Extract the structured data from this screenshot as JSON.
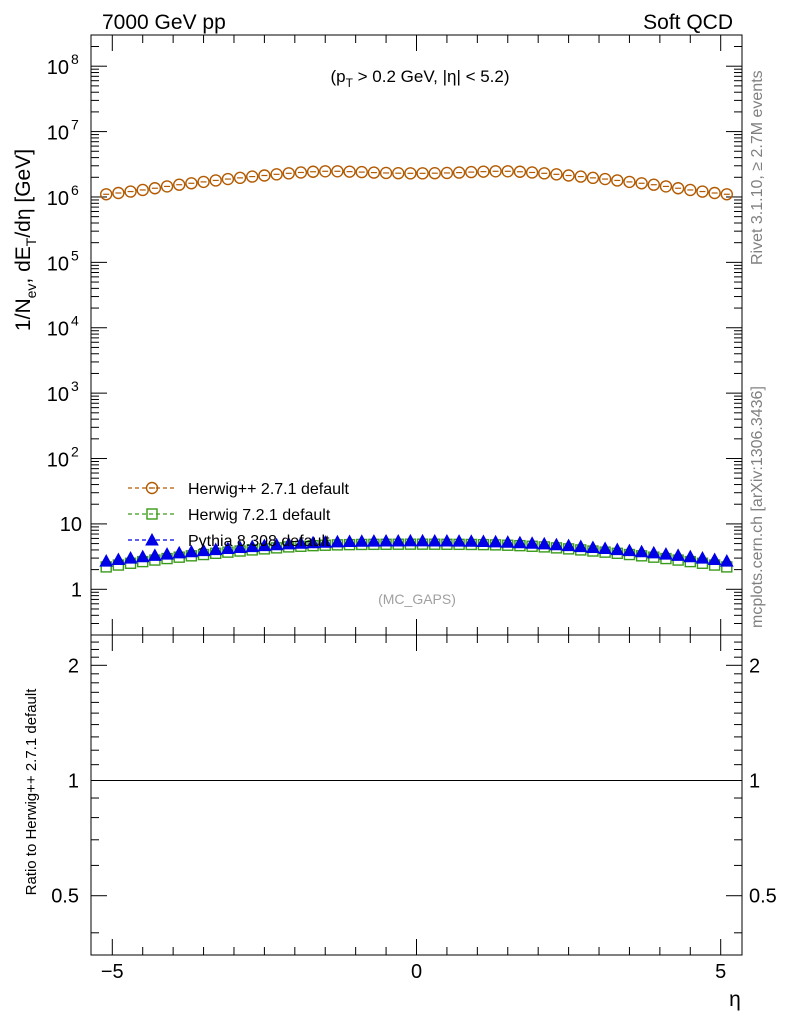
{
  "header": {
    "left": "7000 GeV pp",
    "right": "Soft QCD"
  },
  "side_labels": {
    "rivet": "Rivet 3.1.10, ≥ 2.7M events",
    "mcplots": "mcplots.cern.ch [arXiv:1306.3436]"
  },
  "watermark": "(MC_GAPS)",
  "cut_label": "(p_T > 0.2 GeV, |η| < 5.2)",
  "chart_data": [
    {
      "type": "scatter",
      "panel": "main",
      "ylabel": "1/N_ev, dE_T/dη [GeV]",
      "yscale": "log",
      "ylim": [
        0.2,
        300000000
      ],
      "xlim": [
        -5.35,
        5.35
      ],
      "y_ticks": [
        {
          "value": 1,
          "label": "1"
        },
        {
          "value": 10,
          "label": "10"
        },
        {
          "value": 100,
          "label": "10",
          "exp": "2"
        },
        {
          "value": 1000,
          "label": "10",
          "exp": "3"
        },
        {
          "value": 10000,
          "label": "10",
          "exp": "4"
        },
        {
          "value": 100000,
          "label": "10",
          "exp": "5"
        },
        {
          "value": 1000000,
          "label": "10",
          "exp": "6"
        },
        {
          "value": 10000000,
          "label": "10",
          "exp": "7"
        },
        {
          "value": 100000000,
          "label": "10",
          "exp": "8"
        }
      ],
      "x": [
        -5.1,
        -4.9,
        -4.7,
        -4.5,
        -4.3,
        -4.1,
        -3.9,
        -3.7,
        -3.5,
        -3.3,
        -3.1,
        -2.9,
        -2.7,
        -2.5,
        -2.3,
        -2.1,
        -1.9,
        -1.7,
        -1.5,
        -1.3,
        -1.1,
        -0.9,
        -0.7,
        -0.5,
        -0.3,
        -0.1,
        0.1,
        0.3,
        0.5,
        0.7,
        0.9,
        1.1,
        1.3,
        1.5,
        1.7,
        1.9,
        2.1,
        2.3,
        2.5,
        2.7,
        2.9,
        3.1,
        3.3,
        3.5,
        3.7,
        3.9,
        4.1,
        4.3,
        4.5,
        4.7,
        4.9,
        5.1
      ],
      "series": [
        {
          "name": "Herwig++ 2.7.1 default",
          "color": "#b35a00",
          "marker": "open-circle",
          "values": [
            1100000,
            1150000,
            1210000,
            1280000,
            1360000,
            1450000,
            1540000,
            1620000,
            1700000,
            1790000,
            1880000,
            1960000,
            2050000,
            2130000,
            2220000,
            2300000,
            2370000,
            2430000,
            2470000,
            2470000,
            2440000,
            2400000,
            2360000,
            2330000,
            2310000,
            2300000,
            2300000,
            2310000,
            2330000,
            2360000,
            2400000,
            2440000,
            2470000,
            2470000,
            2430000,
            2370000,
            2300000,
            2220000,
            2130000,
            2050000,
            1960000,
            1880000,
            1790000,
            1700000,
            1620000,
            1540000,
            1450000,
            1360000,
            1280000,
            1210000,
            1150000,
            1100000
          ]
        },
        {
          "name": "Herwig 7.2.1 default",
          "color": "#3a9a1a",
          "marker": "open-square",
          "values": [
            2.2,
            2.35,
            2.5,
            2.65,
            2.8,
            2.95,
            3.1,
            3.25,
            3.4,
            3.55,
            3.7,
            3.85,
            4.0,
            4.15,
            4.3,
            4.45,
            4.55,
            4.65,
            4.72,
            4.78,
            4.82,
            4.85,
            4.87,
            4.88,
            4.89,
            4.9,
            4.9,
            4.89,
            4.88,
            4.87,
            4.85,
            4.82,
            4.78,
            4.72,
            4.65,
            4.55,
            4.45,
            4.3,
            4.15,
            4.0,
            3.85,
            3.7,
            3.55,
            3.4,
            3.25,
            3.1,
            2.95,
            2.8,
            2.65,
            2.5,
            2.35,
            2.2
          ]
        },
        {
          "name": "Pythia 8.308 default",
          "color": "#0000e6",
          "marker": "filled-triangle",
          "values": [
            2.7,
            2.85,
            3.0,
            3.15,
            3.3,
            3.45,
            3.6,
            3.75,
            3.9,
            4.05,
            4.2,
            4.35,
            4.5,
            4.65,
            4.8,
            4.95,
            5.05,
            5.15,
            5.25,
            5.32,
            5.38,
            5.42,
            5.45,
            5.47,
            5.48,
            5.5,
            5.5,
            5.48,
            5.47,
            5.45,
            5.42,
            5.38,
            5.32,
            5.25,
            5.15,
            5.05,
            4.95,
            4.8,
            4.65,
            4.5,
            4.35,
            4.2,
            4.05,
            3.9,
            3.75,
            3.6,
            3.45,
            3.3,
            3.15,
            3.0,
            2.85,
            2.7
          ]
        }
      ],
      "legend": "lower-left"
    },
    {
      "type": "line",
      "panel": "ratio",
      "ylabel": "Ratio to Herwig++ 2.7.1 default",
      "xlabel": "η",
      "yscale": "log",
      "ylim": [
        0.35,
        2.4
      ],
      "xlim": [
        -5.35,
        5.35
      ],
      "y_ticks": [
        {
          "value": 0.5,
          "label": "0.5"
        },
        {
          "value": 1,
          "label": "1"
        },
        {
          "value": 2,
          "label": "2"
        }
      ],
      "x_ticks": [
        {
          "value": -5,
          "label": "−5"
        },
        {
          "value": 0,
          "label": "0"
        },
        {
          "value": 5,
          "label": "5"
        }
      ],
      "reference": 1
    }
  ]
}
